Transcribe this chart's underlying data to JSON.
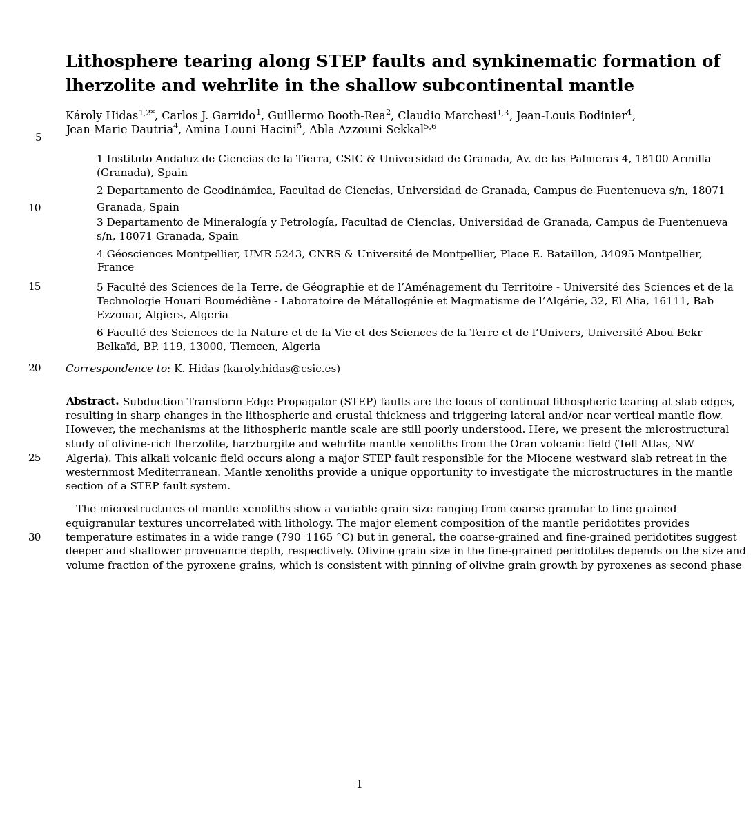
{
  "title_line1": "Lithosphere tearing along STEP faults and synkinematic formation of",
  "title_line2": "lherzolite and wehrlite in the shallow subcontinental mantle",
  "a1_parts": [
    [
      "Károly Hidas",
      false
    ],
    [
      "1,2*",
      true
    ],
    [
      ", Carlos J. Garrido",
      false
    ],
    [
      "1",
      true
    ],
    [
      ", Guillermo Booth-Rea",
      false
    ],
    [
      "2",
      true
    ],
    [
      ", Claudio Marchesi",
      false
    ],
    [
      "1,3",
      true
    ],
    [
      ", Jean-Louis Bodinier",
      false
    ],
    [
      "4",
      true
    ],
    [
      ",",
      false
    ]
  ],
  "a2_parts": [
    [
      "Jean-Marie Dautria",
      false
    ],
    [
      "4",
      true
    ],
    [
      ", Amina Louni-Hacini",
      false
    ],
    [
      "5",
      true
    ],
    [
      ", Abla Azzouni-Sekkal",
      false
    ],
    [
      "5,6",
      true
    ]
  ],
  "affil1": "1 Instituto Andaluz de Ciencias de la Tierra, CSIC & Universidad de Granada, Av. de las Palmeras 4, 18100 Armilla",
  "affil1b": "(Granada), Spain",
  "affil2": "2 Departamento de Geodinámica, Facultad de Ciencias, Universidad de Granada, Campus de Fuentenueva s/n, 18071",
  "affil2b": "Granada, Spain",
  "affil3": "3 Departamento de Mineralogía y Petrología, Facultad de Ciencias, Universidad de Granada, Campus de Fuentenueva",
  "affil3b": "s/n, 18071 Granada, Spain",
  "affil4": "4 Géosciences Montpellier, UMR 5243, CNRS & Université de Montpellier, Place E. Bataillon, 34095 Montpellier,",
  "affil4b": "France",
  "affil5": "5 Faculté des Sciences de la Terre, de Géographie et de l’Aménagement du Territoire - Université des Sciences et de la",
  "affil5b": "Technologie Houari Boumédiène - Laboratoire de Métallogénie et Magmatisme de l’Algérie, 32, El Alia, 16111, Bab",
  "affil5c": "Ezzouar, Algiers, Algeria",
  "affil6": "6 Faculté des Sciences de la Nature et de la Vie et des Sciences de la Terre et de l’Univers, Université Abou Bekr",
  "affil6b": "Belkaïd, BP. 119, 13000, Tlemcen, Algeria",
  "correspondence_italic": "Correspondence to",
  "correspondence_normal": ": K. Hidas (karoly.hidas@csic.es)",
  "abstract_bold": "Abstract.",
  "abstract_lines": [
    " Subduction-Transform Edge Propagator (STEP) faults are the locus of continual lithospheric tearing at slab edges,",
    "resulting in sharp changes in the lithospheric and crustal thickness and triggering lateral and/or near-vertical mantle flow.",
    "However, the mechanisms at the lithospheric mantle scale are still poorly understood. Here, we present the microstructural",
    "study of olivine-rich lherzolite, harzburgite and wehrlite mantle xenoliths from the Oran volcanic field (Tell Atlas, NW",
    "Algeria). This alkali volcanic field occurs along a major STEP fault responsible for the Miocene westward slab retreat in the",
    "westernmost Mediterranean. Mantle xenoliths provide a unique opportunity to investigate the microstructures in the mantle",
    "section of a STEP fault system."
  ],
  "para2_lines": [
    " The microstructures of mantle xenoliths show a variable grain size ranging from coarse granular to fine-grained",
    "equigranular textures uncorrelated with lithology. The major element composition of the mantle peridotites provides",
    "temperature estimates in a wide range (790–1165 °C) but in general, the coarse-grained and fine-grained peridotites suggest",
    "deeper and shallower provenance depth, respectively. Olivine grain size in the fine-grained peridotites depends on the size and",
    "volume fraction of the pyroxene grains, which is consistent with pinning of olivine grain growth by pyroxenes as second phase"
  ],
  "page_number": "1",
  "line_numbers": {
    "5": 0,
    "10": 0,
    "15": 0,
    "20": 0,
    "25": 0,
    "30": 0
  },
  "background_color": "#ffffff",
  "text_color": "#000000",
  "title_fontsize": 17.5,
  "author_fontsize": 11.5,
  "affil_fontsize": 11.0,
  "abstract_fontsize": 11.0,
  "linenum_fontsize": 11.0
}
